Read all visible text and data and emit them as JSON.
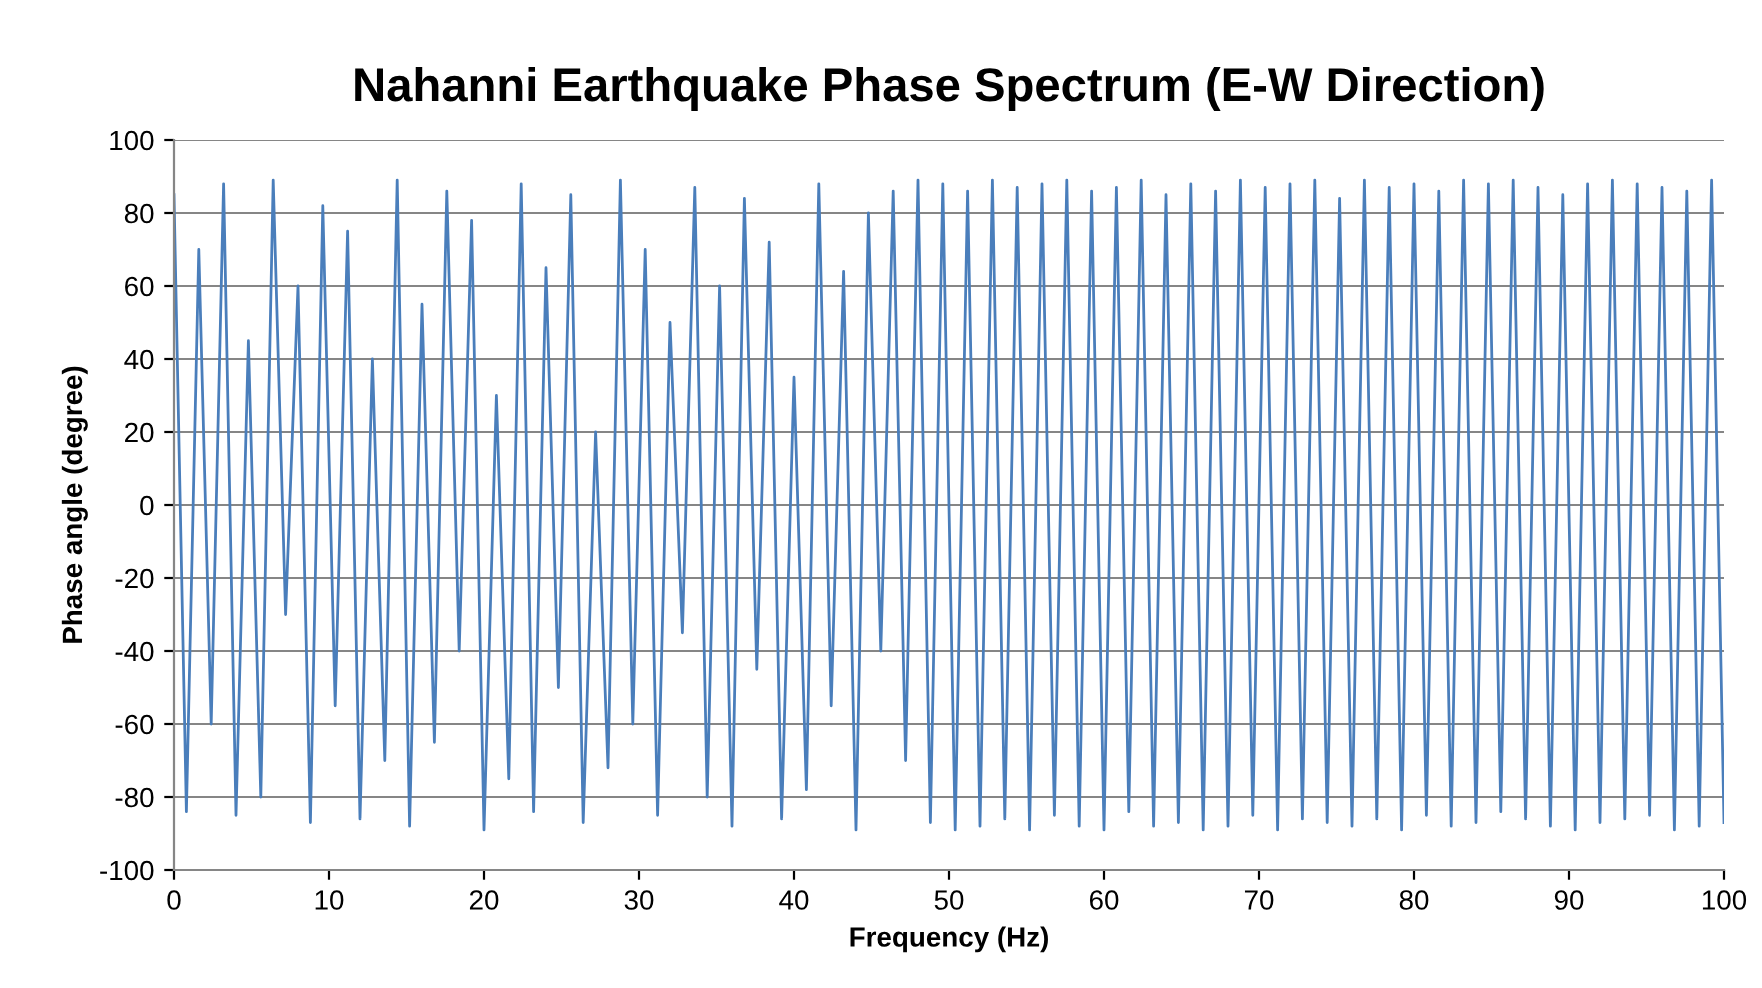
{
  "chart_data": {
    "type": "line",
    "title": "Nahanni Earthquake Phase Spectrum (E-W Direction)",
    "xlabel": "Frequency (Hz)",
    "ylabel": "Phase angle (degree)",
    "x": [
      0,
      0.8,
      1.6,
      2.4,
      3.2,
      4,
      4.8,
      5.6,
      6.4,
      7.2,
      8,
      8.8,
      9.6,
      10.4,
      11.2,
      12,
      12.8,
      13.6,
      14.4,
      15.2,
      16,
      16.8,
      17.6,
      18.4,
      19.2,
      20,
      20.8,
      21.6,
      22.4,
      23.2,
      24,
      24.8,
      25.6,
      26.4,
      27.2,
      28,
      28.8,
      29.6,
      30.4,
      31.2,
      32,
      32.8,
      33.6,
      34.4,
      35.2,
      36,
      36.8,
      37.6,
      38.4,
      39.2,
      40,
      40.8,
      41.6,
      42.4,
      43.2,
      44,
      44.8,
      45.6,
      46.4,
      47.2,
      48,
      48.8,
      49.6,
      50.4,
      51.2,
      52,
      52.8,
      53.6,
      54.4,
      55.2,
      56,
      56.8,
      57.6,
      58.4,
      59.2,
      60,
      60.8,
      61.6,
      62.4,
      63.2,
      64,
      64.8,
      65.6,
      66.4,
      67.2,
      68,
      68.8,
      69.6,
      70.4,
      71.2,
      72,
      72.8,
      73.6,
      74.4,
      75.2,
      76,
      76.8,
      77.6,
      78.4,
      79.2,
      80,
      80.8,
      81.6,
      82.4,
      83.2,
      84,
      84.8,
      85.6,
      86.4,
      87.2,
      88,
      88.8,
      89.6,
      90.4,
      91.2,
      92,
      92.8,
      93.6,
      94.4,
      95.2,
      96,
      96.8,
      97.6,
      98.4,
      99.2,
      100
    ],
    "series": [
      {
        "color": "#4a7ebb",
        "values": [
          85,
          -84,
          70,
          -60,
          88,
          -85,
          45,
          -80,
          89,
          -30,
          60,
          -87,
          82,
          -55,
          75,
          -86,
          40,
          -70,
          89,
          -88,
          55,
          -65,
          86,
          -40,
          78,
          -89,
          30,
          -75,
          88,
          -84,
          65,
          -50,
          85,
          -87,
          20,
          -72,
          89,
          -60,
          70,
          -85,
          50,
          -35,
          87,
          -80,
          60,
          -88,
          84,
          -45,
          72,
          -86,
          35,
          -78,
          88,
          -55,
          64,
          -89,
          80,
          -40,
          86,
          -70,
          89,
          -87,
          88,
          -89,
          86,
          -88,
          89,
          -86,
          87,
          -89,
          88,
          -85,
          89,
          -88,
          86,
          -89,
          87,
          -84,
          89,
          -88,
          85,
          -87,
          88,
          -89,
          86,
          -88,
          89,
          -85,
          87,
          -89,
          88,
          -86,
          89,
          -87,
          84,
          -88,
          89,
          -86,
          87,
          -89,
          88,
          -85,
          86,
          -88,
          89,
          -87,
          88,
          -84,
          89,
          -86,
          87,
          -88,
          85,
          -89,
          88,
          -87,
          89,
          -86,
          88,
          -85,
          87,
          -89,
          86,
          -88,
          89,
          -87
        ]
      }
    ],
    "xlim": [
      0,
      100
    ],
    "xticks": [
      0,
      10,
      20,
      30,
      40,
      50,
      60,
      70,
      80,
      90,
      100
    ],
    "ylim": [
      -100,
      100
    ],
    "yticks": [
      -100,
      -80,
      -60,
      -40,
      -20,
      0,
      20,
      40,
      60,
      80,
      100
    ],
    "grid": "y",
    "marker": "none",
    "line_style": "solid"
  }
}
